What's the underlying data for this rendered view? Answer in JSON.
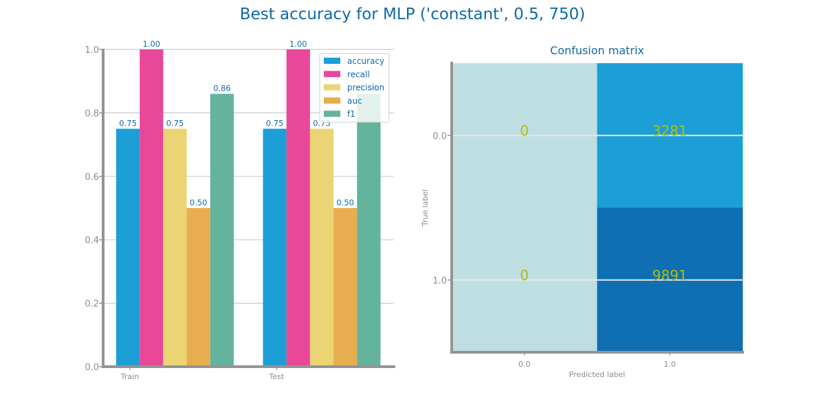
{
  "title": "Best accuracy for MLP ('constant', 0.5, 750)",
  "colors": {
    "title": "#1069a8",
    "axis": "#949494",
    "grid": "#cccccc",
    "annotation": "#b5bd0e"
  },
  "chart_data": [
    {
      "type": "bar",
      "categories": [
        "Train",
        "Test"
      ],
      "series": [
        {
          "name": "accuracy",
          "values": [
            0.75,
            0.75
          ],
          "color": "#1b9fd6"
        },
        {
          "name": "recall",
          "values": [
            1.0,
            1.0
          ],
          "color": "#e9479a"
        },
        {
          "name": "precision",
          "values": [
            0.75,
            0.75
          ],
          "color": "#ebd473"
        },
        {
          "name": "auc",
          "values": [
            0.5,
            0.5
          ],
          "color": "#e8ad4e"
        },
        {
          "name": "f1",
          "values": [
            0.86,
            0.86
          ],
          "color": "#63b39d"
        }
      ],
      "data_labels": [
        [
          "0.75",
          "1.00",
          "0.75",
          "0.50",
          "0.86"
        ],
        [
          "0.75",
          "1.00",
          "0.75",
          "0.50",
          "0.86"
        ]
      ],
      "ylim": [
        0,
        1.0
      ],
      "yticks": [
        "0.0",
        "0.2",
        "0.4",
        "0.6",
        "0.8",
        "1.0"
      ],
      "grid": true,
      "legend_position": "top-right"
    },
    {
      "type": "heatmap",
      "title": "Confusion matrix",
      "xlabel": "Predicted label",
      "ylabel": "True label",
      "x_ticks": [
        "0.0",
        "1.0"
      ],
      "y_ticks": [
        "0.0",
        "1.0"
      ],
      "matrix": [
        [
          0,
          3281
        ],
        [
          0,
          9891
        ]
      ],
      "cell_labels": [
        [
          "0",
          "3281"
        ],
        [
          "0",
          "9891"
        ]
      ],
      "cell_colors": [
        [
          "#bfdee2",
          "#1c9fd6"
        ],
        [
          "#bfdee2",
          "#0e6fb3"
        ]
      ]
    }
  ]
}
